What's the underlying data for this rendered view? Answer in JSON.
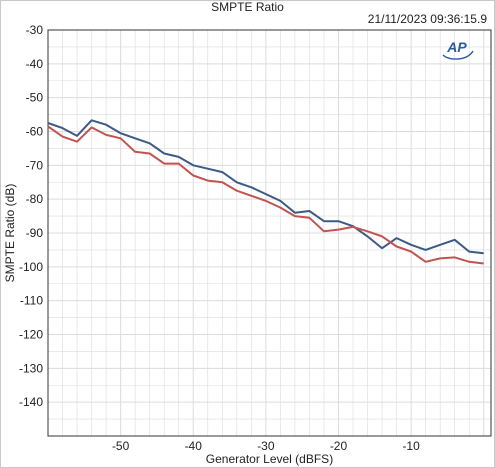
{
  "chart_data": {
    "type": "line",
    "title": "SMPTE Ratio",
    "timestamp": "21/11/2023 09:36:15.9",
    "xlabel": "Generator Level (dBFS)",
    "ylabel": "SMPTE Ratio (dB)",
    "xlim": [
      -60,
      1
    ],
    "ylim": [
      -150,
      -30
    ],
    "xticks": [
      -50,
      -40,
      -30,
      -20,
      -10
    ],
    "yticks": [
      -30,
      -40,
      -50,
      -60,
      -70,
      -80,
      -90,
      -100,
      -110,
      -120,
      -130,
      -140
    ],
    "grid": true,
    "logo": "AP",
    "colors": {
      "series1": "#3d5a85",
      "series2": "#c25450",
      "grid": "#dcdcdc"
    },
    "series": [
      {
        "x": [
          -60,
          -58,
          -56,
          -54,
          -52,
          -50,
          -48,
          -46,
          -44,
          -42,
          -40,
          -38,
          -36,
          -34,
          -32,
          -30,
          -28,
          -26,
          -24,
          -22,
          -20,
          -18,
          -16,
          -14,
          -12,
          -10,
          -8,
          -6,
          -4,
          -2,
          0
        ],
        "values": [
          -57.5,
          -59,
          -61.3,
          -56.7,
          -58,
          -60.5,
          -62,
          -63.5,
          -66.5,
          -67.5,
          -70,
          -71,
          -72,
          -75,
          -76.5,
          -78.5,
          -80.5,
          -84,
          -83.5,
          -86.5,
          -86.5,
          -88,
          -91,
          -94.5,
          -91.5,
          -93.5,
          -95,
          -93.5,
          -92,
          -95.5,
          -96
        ]
      },
      {
        "x": [
          -60,
          -58,
          -56,
          -54,
          -52,
          -50,
          -48,
          -46,
          -44,
          -42,
          -40,
          -38,
          -36,
          -34,
          -32,
          -30,
          -28,
          -26,
          -24,
          -22,
          -20,
          -18,
          -16,
          -14,
          -12,
          -10,
          -8,
          -6,
          -4,
          -2,
          0
        ],
        "values": [
          -58.5,
          -61.5,
          -63,
          -58.8,
          -61,
          -62,
          -66,
          -66.5,
          -69.5,
          -69.5,
          -73,
          -74.5,
          -75,
          -77.5,
          -79,
          -80.5,
          -82.5,
          -85,
          -85.5,
          -89.5,
          -89,
          -88.2,
          -89.5,
          -91,
          -94,
          -95.5,
          -98.5,
          -97.5,
          -97.2,
          -98.5,
          -99
        ]
      }
    ]
  }
}
